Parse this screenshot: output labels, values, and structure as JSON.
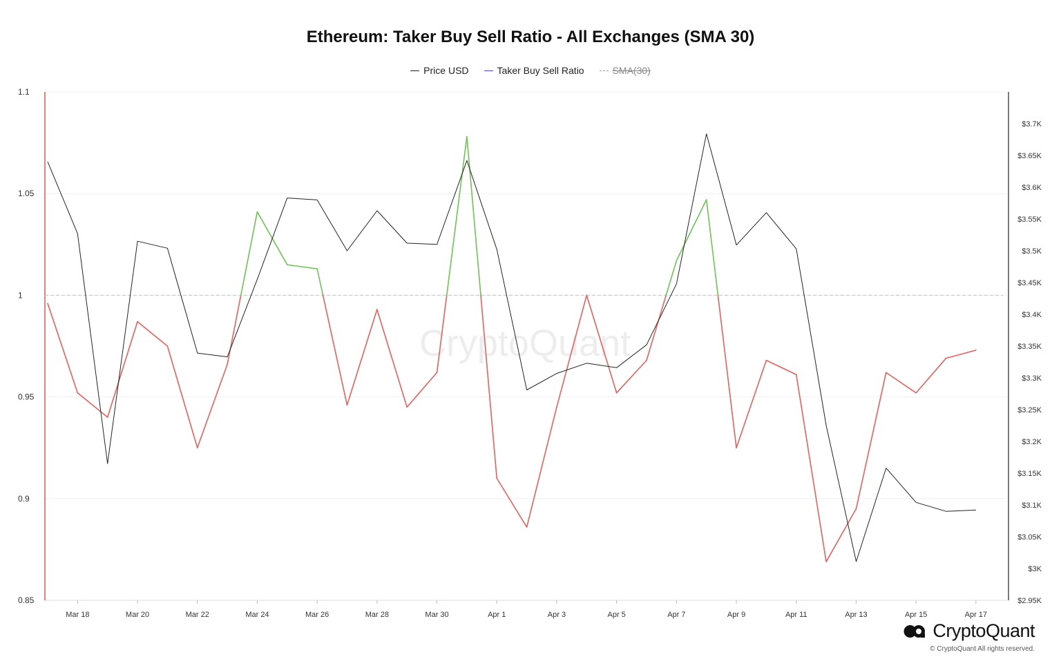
{
  "chart_data": {
    "type": "line",
    "title": "Ethereum: Taker Buy Sell Ratio - All Exchanges (SMA 30)",
    "legend": [
      {
        "label": "Price USD",
        "color": "#222222",
        "style": "solid",
        "enabled": true
      },
      {
        "label": "Taker Buy Sell Ratio",
        "color": "#4a42d6",
        "style": "solid",
        "enabled": true
      },
      {
        "label": "SMA(30)",
        "color": "#9a9a9a",
        "style": "dashed",
        "enabled": false
      }
    ],
    "x_tick_labels": [
      "Mar 18",
      "Mar 20",
      "Mar 22",
      "Mar 24",
      "Mar 26",
      "Mar 28",
      "Mar 30",
      "Apr 1",
      "Apr 3",
      "Apr 5",
      "Apr 7",
      "Apr 9",
      "Apr 11",
      "Apr 13",
      "Apr 15",
      "Apr 17"
    ],
    "dates": [
      "Mar 17",
      "Mar 18",
      "Mar 19",
      "Mar 20",
      "Mar 21",
      "Mar 22",
      "Mar 23",
      "Mar 24",
      "Mar 25",
      "Mar 26",
      "Mar 27",
      "Mar 28",
      "Mar 29",
      "Mar 30",
      "Mar 31",
      "Apr 1",
      "Apr 2",
      "Apr 3",
      "Apr 4",
      "Apr 5",
      "Apr 6",
      "Apr 7",
      "Apr 8",
      "Apr 9",
      "Apr 10",
      "Apr 11",
      "Apr 12",
      "Apr 13",
      "Apr 14",
      "Apr 15",
      "Apr 16",
      "Apr 17"
    ],
    "left_axis": {
      "ylim": [
        0.85,
        1.1
      ],
      "tick_labels": [
        "0.85",
        "0.9",
        "0.95",
        "1",
        "1.05",
        "1.1"
      ],
      "tick_values": [
        0.85,
        0.9,
        0.95,
        1,
        1.05,
        1.1
      ]
    },
    "right_axis": {
      "ylim": [
        2950,
        3750
      ],
      "tick_labels": [
        "$2.95K",
        "$3K",
        "$3.05K",
        "$3.1K",
        "$3.15K",
        "$3.2K",
        "$3.25K",
        "$3.3K",
        "$3.35K",
        "$3.4K",
        "$3.45K",
        "$3.5K",
        "$3.55K",
        "$3.6K",
        "$3.65K",
        "$3.7K"
      ],
      "tick_values": [
        2950,
        3000,
        3050,
        3100,
        3150,
        3200,
        3250,
        3300,
        3350,
        3400,
        3450,
        3500,
        3550,
        3600,
        3650,
        3700
      ]
    },
    "reference_line": 1.0,
    "series": [
      {
        "name": "Taker Buy Sell Ratio",
        "axis": "left",
        "above_color": "#6cc452",
        "below_color": "#e8605c",
        "values": [
          0.996,
          0.952,
          0.94,
          0.987,
          0.975,
          0.925,
          0.966,
          1.041,
          1.015,
          1.013,
          0.946,
          0.993,
          0.945,
          0.962,
          1.078,
          0.91,
          0.886,
          0.945,
          1.0,
          0.952,
          0.968,
          1.017,
          1.047,
          0.925,
          0.968,
          0.961,
          0.869,
          0.895,
          0.962,
          0.952,
          0.969,
          0.973
        ]
      },
      {
        "name": "Price USD",
        "axis": "right",
        "color": "#222222",
        "values": [
          3640,
          3527,
          3165,
          3515,
          3504,
          3339,
          3333,
          3455,
          3583,
          3580,
          3500,
          3563,
          3512,
          3510,
          3642,
          3502,
          3281,
          3307,
          3323,
          3316,
          3352,
          3448,
          3684,
          3509,
          3560,
          3503,
          3225,
          3011,
          3158,
          3104,
          3090,
          3092
        ]
      }
    ]
  },
  "watermark": "CryptoQuant",
  "brand": {
    "name": "CryptoQuant",
    "copyright": "© CryptoQuant All rights reserved."
  }
}
